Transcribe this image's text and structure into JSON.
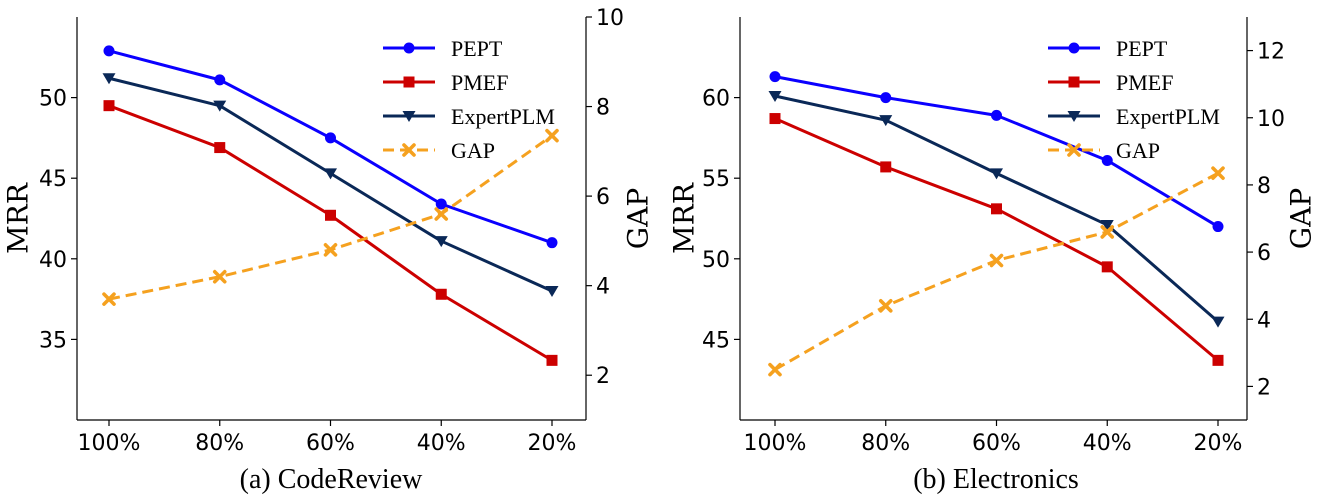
{
  "chart_data": [
    {
      "type": "line",
      "caption": "(a) CodeReview",
      "categories": [
        "100%",
        "80%",
        "60%",
        "40%",
        "20%"
      ],
      "ylabel": "MRR",
      "ylabel_right": "GAP",
      "ylim": [
        30,
        55
      ],
      "y_ticks": [
        35,
        40,
        45,
        50
      ],
      "ylim_right": [
        1,
        10
      ],
      "y_ticks_right": [
        2,
        4,
        6,
        8,
        10
      ],
      "series": [
        {
          "name": "PEPT",
          "axis": "left",
          "color": "#0b00ff",
          "marker": "circle",
          "dash": "solid",
          "values": [
            52.9,
            51.1,
            47.5,
            43.4,
            41.0
          ]
        },
        {
          "name": "PMEF",
          "axis": "left",
          "color": "#cc0000",
          "marker": "square",
          "dash": "solid",
          "values": [
            49.5,
            46.9,
            42.7,
            37.8,
            33.7
          ]
        },
        {
          "name": "ExpertPLM",
          "axis": "left",
          "color": "#0a2857",
          "marker": "triangle-down",
          "dash": "solid",
          "values": [
            51.2,
            49.5,
            45.3,
            41.1,
            38.0
          ]
        },
        {
          "name": "GAP",
          "axis": "right",
          "color": "#f5a11f",
          "marker": "x",
          "dash": "dashed",
          "values": [
            3.7,
            4.2,
            4.8,
            5.6,
            7.35
          ]
        }
      ]
    },
    {
      "type": "line",
      "caption": "(b) Electronics",
      "categories": [
        "100%",
        "80%",
        "60%",
        "40%",
        "20%"
      ],
      "ylabel": "MRR",
      "ylabel_right": "GAP",
      "ylim": [
        40,
        65
      ],
      "y_ticks": [
        45,
        50,
        55,
        60
      ],
      "ylim_right": [
        1,
        13
      ],
      "y_ticks_right": [
        2,
        4,
        6,
        8,
        10,
        12
      ],
      "series": [
        {
          "name": "PEPT",
          "axis": "left",
          "color": "#0b00ff",
          "marker": "circle",
          "dash": "solid",
          "values": [
            61.3,
            60.0,
            58.9,
            56.1,
            52.0
          ]
        },
        {
          "name": "PMEF",
          "axis": "left",
          "color": "#cc0000",
          "marker": "square",
          "dash": "solid",
          "values": [
            58.7,
            55.7,
            53.1,
            49.5,
            43.7
          ]
        },
        {
          "name": "ExpertPLM",
          "axis": "left",
          "color": "#0a2857",
          "marker": "triangle-down",
          "dash": "solid",
          "values": [
            60.1,
            58.6,
            55.3,
            52.1,
            46.1
          ]
        },
        {
          "name": "GAP",
          "axis": "right",
          "color": "#f5a11f",
          "marker": "x",
          "dash": "dashed",
          "values": [
            2.5,
            4.4,
            5.75,
            6.6,
            8.35
          ]
        }
      ]
    }
  ]
}
